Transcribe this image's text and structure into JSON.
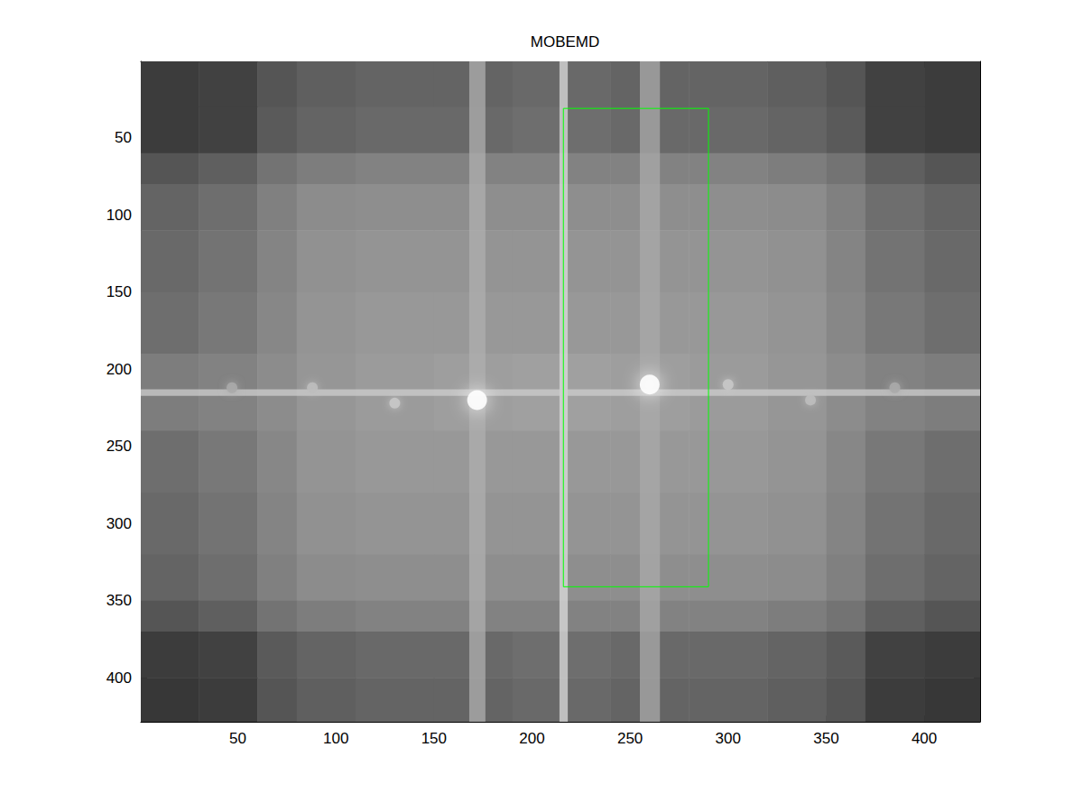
{
  "chart_data": {
    "type": "image",
    "title": "MOBEMD",
    "xlim": [
      0.5,
      428.5
    ],
    "ylim": [
      0.5,
      428.5
    ],
    "xticks": [
      50,
      100,
      150,
      200,
      250,
      300,
      350,
      400
    ],
    "yticks": [
      50,
      100,
      150,
      200,
      250,
      300,
      350,
      400
    ],
    "cell_edges_x": [
      0.5,
      30,
      60,
      80,
      110,
      150,
      190,
      240,
      280,
      320,
      350,
      370,
      400,
      428.5
    ],
    "cell_edges_y": [
      0.5,
      30,
      60,
      80,
      110,
      150,
      190,
      240,
      280,
      320,
      350,
      370,
      400,
      428.5
    ],
    "cells": [
      [
        60,
        65,
        85,
        95,
        100,
        100,
        105,
        100,
        100,
        95,
        85,
        65,
        60
      ],
      [
        60,
        65,
        90,
        100,
        105,
        105,
        110,
        105,
        105,
        100,
        90,
        65,
        60
      ],
      [
        85,
        95,
        115,
        125,
        130,
        130,
        130,
        130,
        130,
        125,
        115,
        95,
        85
      ],
      [
        100,
        110,
        128,
        140,
        142,
        142,
        142,
        142,
        142,
        140,
        128,
        110,
        100
      ],
      [
        105,
        115,
        132,
        145,
        148,
        148,
        148,
        148,
        148,
        145,
        132,
        115,
        105
      ],
      [
        110,
        120,
        135,
        148,
        152,
        152,
        152,
        152,
        152,
        148,
        135,
        120,
        110
      ],
      [
        125,
        130,
        140,
        150,
        155,
        158,
        160,
        158,
        155,
        150,
        140,
        130,
        125
      ],
      [
        110,
        120,
        135,
        148,
        152,
        152,
        152,
        152,
        152,
        148,
        135,
        120,
        110
      ],
      [
        105,
        115,
        132,
        145,
        148,
        148,
        148,
        148,
        148,
        145,
        132,
        115,
        105
      ],
      [
        100,
        110,
        128,
        140,
        142,
        142,
        142,
        142,
        142,
        140,
        128,
        110,
        100
      ],
      [
        85,
        95,
        115,
        125,
        130,
        130,
        130,
        130,
        130,
        125,
        115,
        95,
        85
      ],
      [
        60,
        65,
        90,
        100,
        105,
        105,
        110,
        105,
        105,
        100,
        90,
        65,
        60
      ],
      [
        55,
        60,
        85,
        95,
        100,
        100,
        105,
        100,
        100,
        95,
        85,
        60,
        55
      ]
    ],
    "bands": [
      {
        "x": [
          168,
          176
        ],
        "level": 175
      },
      {
        "x": [
          214,
          218
        ],
        "level": 220
      },
      {
        "x": [
          255,
          265
        ],
        "level": 170
      },
      {
        "y": [
          213,
          217
        ],
        "level": 205
      }
    ],
    "peaks": [
      {
        "x": 172,
        "y": 220,
        "level": 255
      },
      {
        "x": 260,
        "y": 210,
        "level": 255
      },
      {
        "x": 130,
        "y": 222,
        "level": 200
      },
      {
        "x": 88,
        "y": 212,
        "level": 190
      },
      {
        "x": 47,
        "y": 212,
        "level": 170
      },
      {
        "x": 300,
        "y": 210,
        "level": 200
      },
      {
        "x": 342,
        "y": 220,
        "level": 190
      },
      {
        "x": 385,
        "y": 212,
        "level": 170
      }
    ],
    "rectangle": {
      "x": [
        216,
        290
      ],
      "y": [
        31,
        341
      ],
      "color": "#00ff00"
    }
  }
}
